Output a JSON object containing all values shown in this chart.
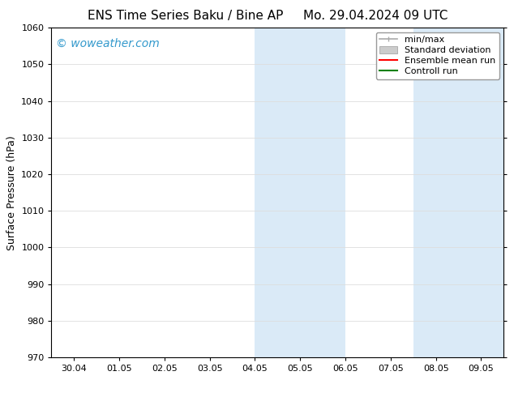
{
  "title_left": "ENS Time Series Baku / Bine AP",
  "title_right": "Mo. 29.04.2024 09 UTC",
  "ylabel": "Surface Pressure (hPa)",
  "ylim": [
    970,
    1060
  ],
  "yticks": [
    970,
    980,
    990,
    1000,
    1010,
    1020,
    1030,
    1040,
    1050,
    1060
  ],
  "xtick_labels": [
    "30.04",
    "01.05",
    "02.05",
    "03.05",
    "04.05",
    "05.05",
    "06.05",
    "07.05",
    "08.05",
    "09.05"
  ],
  "xtick_positions": [
    0,
    1,
    2,
    3,
    4,
    5,
    6,
    7,
    8,
    9
  ],
  "xmin": -0.5,
  "xmax": 9.5,
  "shaded_regions": [
    {
      "xmin": 4.0,
      "xmax": 5.0,
      "color": "#daeaf7"
    },
    {
      "xmin": 5.0,
      "xmax": 6.0,
      "color": "#daeaf7"
    },
    {
      "xmin": 7.5,
      "xmax": 8.5,
      "color": "#daeaf7"
    },
    {
      "xmin": 8.5,
      "xmax": 9.5,
      "color": "#daeaf7"
    }
  ],
  "legend_entries": [
    {
      "label": "min/max",
      "color": "#aaaaaa",
      "lw": 1.2,
      "style": "minmax"
    },
    {
      "label": "Standard deviation",
      "color": "#cccccc",
      "lw": 5,
      "style": "band"
    },
    {
      "label": "Ensemble mean run",
      "color": "#ff0000",
      "lw": 1.5,
      "style": "line"
    },
    {
      "label": "Controll run",
      "color": "#008000",
      "lw": 1.5,
      "style": "line"
    }
  ],
  "watermark_text": "© woweather.com",
  "watermark_color": "#3399cc",
  "watermark_fontsize": 10,
  "title_fontsize": 11,
  "axis_fontsize": 9,
  "tick_fontsize": 8,
  "legend_fontsize": 8,
  "background_color": "#ffffff",
  "plot_bg_color": "#ffffff",
  "grid_color": "#dddddd",
  "spine_color": "#000000"
}
